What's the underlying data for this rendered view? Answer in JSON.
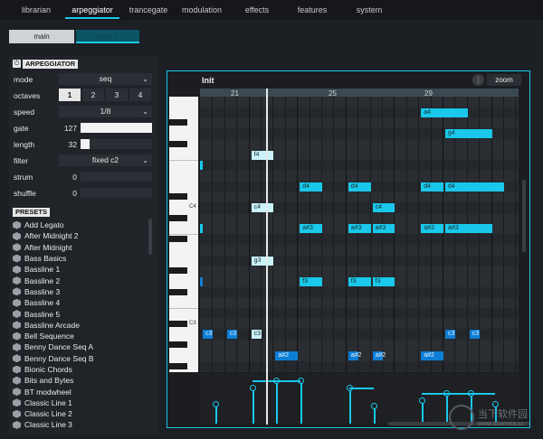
{
  "tabs": [
    {
      "label": "librarian"
    },
    {
      "label": "arpeggiator"
    },
    {
      "label": "trancegate"
    },
    {
      "label": "modulation"
    },
    {
      "label": "effects"
    },
    {
      "label": "features"
    },
    {
      "label": "system"
    }
  ],
  "active_tab": "arpeggiator",
  "subtabs": {
    "main": "main",
    "layer": "layer 1"
  },
  "arpeggiator": {
    "power_icon": "power-icon",
    "title": "ARPEGGIATOR",
    "mode": {
      "label": "mode",
      "value": "seq"
    },
    "octaves": {
      "label": "octaves",
      "options": [
        "1",
        "2",
        "3",
        "4"
      ],
      "selected": "1"
    },
    "speed": {
      "label": "speed",
      "value": "1/8"
    },
    "gate": {
      "label": "gate",
      "value": "127",
      "level": 1.0
    },
    "length": {
      "label": "length",
      "value": "32",
      "level": 0.1
    },
    "filter": {
      "label": "filter",
      "value": "fixed c2"
    },
    "strum": {
      "label": "strum",
      "value": "0",
      "level": 0
    },
    "shuffle": {
      "label": "shuffle",
      "value": "0",
      "level": 0
    }
  },
  "presets": {
    "title": "PRESETS",
    "items": [
      "Add Legato",
      "After Midnight 2",
      "After Midnight",
      "Bass Basics",
      "Bassline 1",
      "Bassline 2",
      "Bassline 3",
      "Bassline 4",
      "Bassline 5",
      "Bassline Arcade",
      "Bell Sequence",
      "Benny Dance Seq A",
      "Benny Dance Seq B",
      "Bionic Chords",
      "Bits and Bytes",
      "BT modwheel",
      "Classic Line 1",
      "Classic Line 2",
      "Classic Line 3"
    ]
  },
  "editor": {
    "title": "Init",
    "menu_icon": "more-vertical-icon",
    "zoom_label": "zoom",
    "bar_numbers": [
      "21",
      "25",
      "29"
    ],
    "key_labels": [
      "C4",
      "C3"
    ],
    "notes": [
      {
        "label": "a4"
      },
      {
        "label": "g4"
      },
      {
        "label": "f4"
      },
      {
        "label": "d4"
      },
      {
        "label": "d4"
      },
      {
        "label": "d4"
      },
      {
        "label": "d4"
      },
      {
        "label": "c4"
      },
      {
        "label": "c4"
      },
      {
        "label": "a#3"
      },
      {
        "label": "a#3"
      },
      {
        "label": "a#3"
      },
      {
        "label": "a#3"
      },
      {
        "label": "a#3"
      },
      {
        "label": "g3"
      },
      {
        "label": "f3"
      },
      {
        "label": "f3"
      },
      {
        "label": "f3"
      },
      {
        "label": "c3"
      },
      {
        "label": "c3"
      },
      {
        "label": "c3"
      },
      {
        "label": "c3"
      },
      {
        "label": "c3"
      },
      {
        "label": "a#2"
      },
      {
        "label": "a#2"
      },
      {
        "label": "a#2"
      },
      {
        "label": "a#2"
      }
    ]
  },
  "watermark": {
    "text": "当下软件园",
    "url": "www.downxia.com"
  },
  "colors": {
    "accent": "#18c9e8",
    "note": "#19c8ea",
    "note_dark": "#0d7ed6"
  }
}
